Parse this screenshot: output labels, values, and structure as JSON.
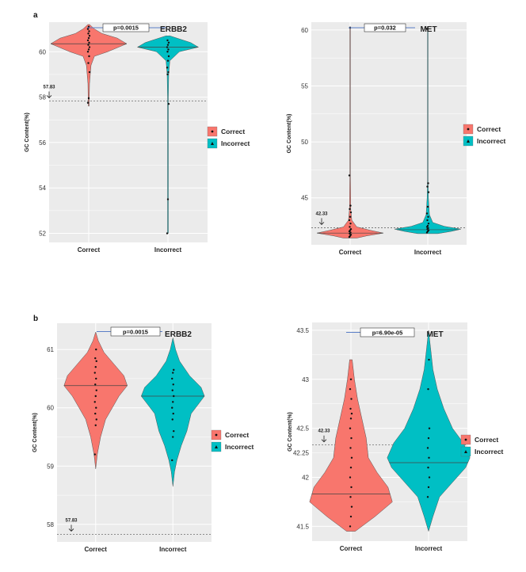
{
  "panel_labels": {
    "a": "a",
    "b": "b"
  },
  "colors": {
    "correct": "#F8766D",
    "incorrect": "#00BFC4",
    "panel_bg": "#EBEBEB",
    "grid": "#FFFFFF",
    "dot": "#111111"
  },
  "chart_data": [
    {
      "type": "violin",
      "id": "a_erbb2",
      "gene": "ERBB2",
      "pvalue": "p=0.0015",
      "ylabel": "GC Content(%)",
      "categories": [
        "Correct",
        "Incorrect"
      ],
      "ylim": [
        51.6,
        61.3
      ],
      "yticks": [
        52,
        54,
        56,
        58,
        60
      ],
      "ytick_labels": [
        "52",
        "54",
        "56",
        "58",
        "60"
      ],
      "reference_line": {
        "value": 57.83,
        "label": "57.83"
      },
      "violins": [
        {
          "category": "Correct",
          "median": 60.35,
          "profile": [
            [
              57.6,
              0.01
            ],
            [
              58.6,
              0.02
            ],
            [
              59.4,
              0.06
            ],
            [
              59.8,
              0.15
            ],
            [
              60.0,
              0.5
            ],
            [
              60.35,
              1.0
            ],
            [
              60.6,
              0.75
            ],
            [
              60.8,
              0.35
            ],
            [
              61.0,
              0.15
            ],
            [
              61.2,
              0.02
            ]
          ],
          "points": [
            57.75,
            57.95,
            59.1,
            59.5,
            59.8,
            60.0,
            60.1,
            60.2,
            60.3,
            60.4,
            60.5,
            60.6,
            60.7,
            60.8,
            60.9,
            61.0,
            61.1
          ]
        },
        {
          "category": "Incorrect",
          "median": 60.2,
          "profile": [
            [
              52.0,
              0.01
            ],
            [
              55.0,
              0.01
            ],
            [
              58.0,
              0.01
            ],
            [
              59.0,
              0.02
            ],
            [
              59.6,
              0.05
            ],
            [
              60.0,
              0.3
            ],
            [
              60.2,
              0.8
            ],
            [
              60.4,
              0.6
            ],
            [
              60.7,
              0.05
            ]
          ],
          "points": [
            52.0,
            53.5,
            57.7,
            59.0,
            59.1,
            59.3,
            59.6,
            59.8,
            60.0,
            60.1,
            60.2,
            60.3,
            60.4,
            60.5
          ]
        }
      ]
    },
    {
      "type": "violin",
      "id": "a_met",
      "gene": "MET",
      "pvalue": "p=0.032",
      "ylabel": "GC Content(%)",
      "categories": [
        "Correct",
        "Incorrect"
      ],
      "ylim": [
        40.8,
        60.7
      ],
      "yticks": [
        45,
        50,
        55,
        60
      ],
      "ytick_labels": [
        "45",
        "50",
        "55",
        "60"
      ],
      "reference_line": {
        "value": 42.33,
        "label": "42.33"
      },
      "violins": [
        {
          "category": "Correct",
          "median": 41.85,
          "profile": [
            [
              41.4,
              0.2
            ],
            [
              41.6,
              0.5
            ],
            [
              41.85,
              1.0
            ],
            [
              42.1,
              0.6
            ],
            [
              42.4,
              0.2
            ],
            [
              43.0,
              0.05
            ],
            [
              44.0,
              0.02
            ],
            [
              47.0,
              0.01
            ],
            [
              60.3,
              0.01
            ]
          ],
          "points": [
            41.5,
            41.6,
            41.7,
            41.8,
            41.9,
            42.0,
            42.1,
            42.2,
            42.4,
            42.7,
            43.0,
            43.3,
            43.7,
            44.0,
            44.3,
            47.0,
            60.2
          ]
        },
        {
          "category": "Incorrect",
          "median": 42.15,
          "profile": [
            [
              41.8,
              0.3
            ],
            [
              42.0,
              0.7
            ],
            [
              42.2,
              1.0
            ],
            [
              42.45,
              0.5
            ],
            [
              42.8,
              0.15
            ],
            [
              43.5,
              0.05
            ],
            [
              45.0,
              0.02
            ],
            [
              46.5,
              0.01
            ],
            [
              60.3,
              0.01
            ]
          ],
          "points": [
            41.9,
            42.0,
            42.1,
            42.2,
            42.3,
            42.4,
            42.5,
            42.7,
            43.0,
            43.3,
            43.6,
            44.2,
            45.5,
            46.0,
            46.3,
            60.1
          ]
        }
      ]
    },
    {
      "type": "violin",
      "id": "b_erbb2",
      "gene": "ERBB2",
      "pvalue": "p=0.0015",
      "ylabel": "GC Content(%)",
      "categories": [
        "Correct",
        "Incorrect"
      ],
      "ylim": [
        57.7,
        61.45
      ],
      "yticks": [
        58,
        59,
        60,
        61
      ],
      "ytick_labels": [
        "58",
        "59",
        "60",
        "61"
      ],
      "reference_line": {
        "value": 57.83,
        "label": "57.83"
      },
      "violins": [
        {
          "category": "Correct",
          "median": 60.38,
          "profile": [
            [
              58.95,
              0.0
            ],
            [
              59.2,
              0.05
            ],
            [
              59.5,
              0.15
            ],
            [
              59.8,
              0.3
            ],
            [
              60.0,
              0.5
            ],
            [
              60.2,
              0.7
            ],
            [
              60.38,
              0.95
            ],
            [
              60.55,
              0.85
            ],
            [
              60.75,
              0.55
            ],
            [
              60.95,
              0.25
            ],
            [
              61.15,
              0.08
            ],
            [
              61.3,
              0.0
            ]
          ],
          "points": [
            59.2,
            59.7,
            59.8,
            59.9,
            60.0,
            60.1,
            60.2,
            60.3,
            60.4,
            60.5,
            60.6,
            60.7,
            60.8,
            60.85,
            61.0
          ]
        },
        {
          "category": "Incorrect",
          "median": 60.2,
          "profile": [
            [
              58.65,
              0.0
            ],
            [
              58.9,
              0.05
            ],
            [
              59.1,
              0.12
            ],
            [
              59.35,
              0.25
            ],
            [
              59.6,
              0.42
            ],
            [
              59.9,
              0.55
            ],
            [
              60.05,
              0.75
            ],
            [
              60.2,
              0.95
            ],
            [
              60.35,
              0.85
            ],
            [
              60.55,
              0.5
            ],
            [
              60.8,
              0.2
            ],
            [
              61.0,
              0.08
            ],
            [
              61.2,
              0.0
            ]
          ],
          "points": [
            59.1,
            59.5,
            59.6,
            59.8,
            59.9,
            60.0,
            60.1,
            60.2,
            60.3,
            60.4,
            60.5,
            60.6,
            60.65
          ]
        }
      ]
    },
    {
      "type": "violin",
      "id": "b_met",
      "gene": "MET",
      "pvalue": "p=6.90e-05",
      "ylabel": "GC Content(%)",
      "categories": [
        "Correct",
        "Incorrect"
      ],
      "ylim": [
        41.35,
        43.58
      ],
      "yticks": [
        41.5,
        42,
        42.5,
        43,
        43.5
      ],
      "ytick_labels": [
        "41.5",
        "42",
        "42.25",
        "42.5",
        "43",
        "43.5"
      ],
      "tick_values_for_labels": [
        41.5,
        42,
        42.25,
        42.5,
        43,
        43.5
      ],
      "reference_line": {
        "value": 42.33,
        "label": "42.33"
      },
      "violins": [
        {
          "category": "Correct",
          "median": 41.83,
          "profile": [
            [
              41.45,
              0.1
            ],
            [
              41.6,
              0.55
            ],
            [
              41.75,
              0.95
            ],
            [
              41.9,
              0.85
            ],
            [
              42.05,
              0.6
            ],
            [
              42.2,
              0.4
            ],
            [
              42.4,
              0.35
            ],
            [
              42.6,
              0.25
            ],
            [
              42.8,
              0.15
            ],
            [
              43.0,
              0.08
            ],
            [
              43.2,
              0.03
            ]
          ],
          "points": [
            41.5,
            41.6,
            41.7,
            41.8,
            41.9,
            42.0,
            42.1,
            42.2,
            42.3,
            42.4,
            42.5,
            42.6,
            42.65,
            42.7,
            42.8,
            42.9,
            43.0
          ]
        },
        {
          "category": "Incorrect",
          "median": 42.15,
          "profile": [
            [
              41.45,
              0.0
            ],
            [
              41.6,
              0.1
            ],
            [
              41.8,
              0.25
            ],
            [
              41.95,
              0.55
            ],
            [
              42.1,
              0.85
            ],
            [
              42.2,
              0.95
            ],
            [
              42.35,
              0.8
            ],
            [
              42.5,
              0.55
            ],
            [
              42.7,
              0.35
            ],
            [
              42.9,
              0.2
            ],
            [
              43.1,
              0.1
            ],
            [
              43.3,
              0.05
            ],
            [
              43.5,
              0.0
            ]
          ],
          "points": [
            41.8,
            41.9,
            42.0,
            42.1,
            42.2,
            42.3,
            42.4,
            42.5,
            42.9,
            43.2
          ]
        }
      ]
    }
  ],
  "legends": [
    {
      "items": [
        {
          "label": "Correct",
          "color": "#F8766D"
        },
        {
          "label": "Incorrect",
          "color": "#00BFC4"
        }
      ]
    },
    {
      "items": [
        {
          "label": "Correct",
          "color": "#F8766D"
        },
        {
          "label": "Incorrect",
          "color": "#00BFC4"
        }
      ]
    },
    {
      "items": [
        {
          "label": "Correct",
          "color": "#F8766D"
        },
        {
          "label": "Incorrect",
          "color": "#00BFC4"
        }
      ]
    },
    {
      "items": [
        {
          "label": "Correct",
          "color": "#F8766D"
        },
        {
          "label": "Incorrect",
          "color": "#00BFC4"
        }
      ]
    }
  ]
}
